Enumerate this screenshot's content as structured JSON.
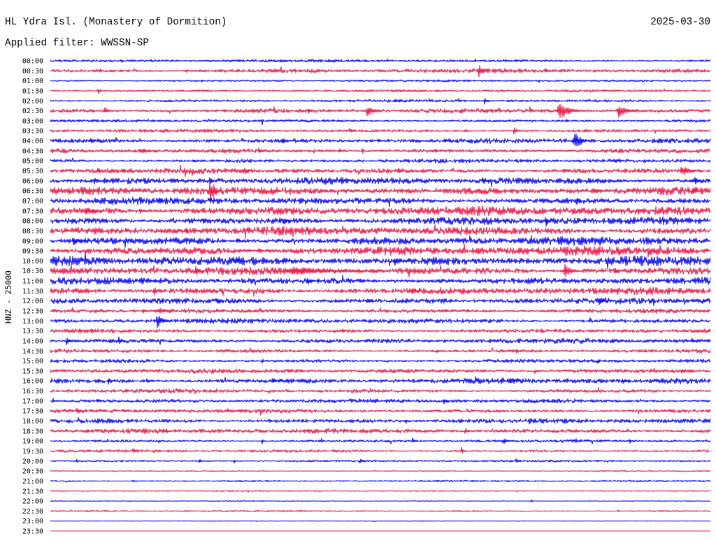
{
  "chart_data": {
    "type": "line",
    "title": "HL Ydra Isl. (Monastery of Dormition)",
    "date": "2025-03-30",
    "subtitle": "Applied filter: WWSSN-SP",
    "ylabel": "HNZ - 25000",
    "grid": false,
    "colors": [
      "#1010f4",
      "#f41c4c"
    ],
    "rows": [
      {
        "label": "00:00",
        "noise": 0.12,
        "events": [
          {
            "t": 3.27,
            "amp": 0.22,
            "dur": 6
          },
          {
            "t": 10.58,
            "amp": 0.25,
            "dur": 8
          },
          {
            "t": 14.87,
            "amp": 0.22,
            "dur": 8
          },
          {
            "t": 19.32,
            "amp": 0.2,
            "dur": 6
          }
        ]
      },
      {
        "label": "00:30",
        "noise": 0.17,
        "events": [
          {
            "t": 6.2,
            "amp": 0.22,
            "dur": 10
          },
          {
            "t": 19.48,
            "amp": 0.75,
            "dur": 25
          },
          {
            "t": 22.5,
            "amp": 0.35,
            "dur": 15
          }
        ]
      },
      {
        "label": "01:00",
        "noise": 0.09,
        "events": [
          {
            "t": 6.9,
            "amp": 0.18,
            "dur": 6
          },
          {
            "t": 14.1,
            "amp": 0.16,
            "dur": 6
          }
        ]
      },
      {
        "label": "01:30",
        "noise": 0.1,
        "events": [
          {
            "t": 2.16,
            "amp": 0.5,
            "dur": 15
          },
          {
            "t": 17.57,
            "amp": 0.3,
            "dur": 10
          }
        ]
      },
      {
        "label": "02:00",
        "noise": 0.12,
        "events": [
          {
            "t": 15.67,
            "amp": 0.25,
            "dur": 15
          },
          {
            "t": 19.73,
            "amp": 0.42,
            "dur": 20
          }
        ]
      },
      {
        "label": "02:30",
        "noise": 0.17,
        "events": [
          {
            "t": 2.48,
            "amp": 0.4,
            "dur": 20
          },
          {
            "t": 11.69,
            "amp": 0.35,
            "dur": 20
          },
          {
            "t": 14.39,
            "amp": 0.6,
            "dur": 45
          },
          {
            "t": 19.64,
            "amp": 0.25,
            "dur": 15
          },
          {
            "t": 23.13,
            "amp": 0.9,
            "dur": 70
          },
          {
            "t": 25.83,
            "amp": 0.75,
            "dur": 60
          }
        ]
      },
      {
        "label": "03:00",
        "noise": 0.12,
        "events": [
          {
            "t": 9.63,
            "amp": 0.45,
            "dur": 5
          },
          {
            "t": 13.1,
            "amp": 0.22,
            "dur": 10
          },
          {
            "t": 23.45,
            "amp": 0.35,
            "dur": 10
          }
        ]
      },
      {
        "label": "03:30",
        "noise": 0.14,
        "events": [
          {
            "t": 5.0,
            "amp": 0.22,
            "dur": 10
          },
          {
            "t": 13.6,
            "amp": 0.32,
            "dur": 20
          },
          {
            "t": 18.84,
            "amp": 0.3,
            "dur": 15
          },
          {
            "t": 21.07,
            "amp": 0.4,
            "dur": 20
          }
        ]
      },
      {
        "label": "04:00",
        "noise": 0.2,
        "events": [
          {
            "t": 1.84,
            "amp": 0.3,
            "dur": 30
          },
          {
            "t": 10.58,
            "amp": 0.5,
            "dur": 25
          },
          {
            "t": 14.87,
            "amp": 0.3,
            "dur": 15
          },
          {
            "t": 17.89,
            "amp": 0.3,
            "dur": 15
          },
          {
            "t": 23.83,
            "amp": 1.2,
            "dur": 45
          }
        ]
      },
      {
        "label": "04:30",
        "noise": 0.18,
        "events": [
          {
            "t": 4.07,
            "amp": 0.45,
            "dur": 45
          },
          {
            "t": 9.47,
            "amp": 0.3,
            "dur": 20
          },
          {
            "t": 13.12,
            "amp": 0.35,
            "dur": 20
          },
          {
            "t": 14.17,
            "amp": 0.55,
            "dur": 8
          }
        ]
      },
      {
        "label": "05:00",
        "noise": 0.16,
        "events": [
          {
            "t": 6.5,
            "amp": 0.2,
            "dur": 15
          },
          {
            "t": 25.6,
            "amp": 0.25,
            "dur": 20
          }
        ]
      },
      {
        "label": "05:30",
        "noise": 0.22,
        "events": [
          {
            "t": 2.16,
            "amp": 0.45,
            "dur": 15
          },
          {
            "t": 3.27,
            "amp": 0.35,
            "dur": 20
          },
          {
            "t": 8.83,
            "amp": 0.4,
            "dur": 35
          },
          {
            "t": 15.82,
            "amp": 0.35,
            "dur": 25
          },
          {
            "t": 28.69,
            "amp": 0.6,
            "dur": 60
          }
        ]
      },
      {
        "label": "06:00",
        "noise": 0.27,
        "events": [
          {
            "t": 2.0,
            "amp": 0.5,
            "dur": 12
          },
          {
            "t": 2.48,
            "amp": 0.4,
            "dur": 12
          },
          {
            "t": 7.25,
            "amp": 0.45,
            "dur": 20
          },
          {
            "t": 19.64,
            "amp": 0.35,
            "dur": 20
          },
          {
            "t": 29.3,
            "amp": 0.45,
            "dur": 25
          }
        ]
      },
      {
        "label": "06:30",
        "noise": 0.32,
        "events": [
          {
            "t": 7.25,
            "amp": 1.45,
            "dur": 35
          },
          {
            "t": 10.2,
            "amp": 0.3,
            "dur": 20
          },
          {
            "t": 12.5,
            "amp": 0.4,
            "dur": 4
          },
          {
            "t": 24.72,
            "amp": 0.45,
            "dur": 30
          },
          {
            "t": 29.2,
            "amp": 0.4,
            "dur": 20
          }
        ]
      },
      {
        "label": "07:00",
        "noise": 0.28,
        "events": [
          {
            "t": 4.96,
            "amp": 0.5,
            "dur": 15
          },
          {
            "t": 7.25,
            "amp": 0.4,
            "dur": 15
          },
          {
            "t": 23.93,
            "amp": 0.5,
            "dur": 20
          }
        ]
      },
      {
        "label": "07:30",
        "noise": 0.35,
        "events": [
          {
            "t": 1.68,
            "amp": 0.55,
            "dur": 40
          },
          {
            "t": 4.07,
            "amp": 0.4,
            "dur": 20
          }
        ]
      },
      {
        "label": "08:00",
        "noise": 0.3,
        "events": [
          {
            "t": 6.93,
            "amp": 0.5,
            "dur": 12
          },
          {
            "t": 10.58,
            "amp": 0.5,
            "dur": 30
          },
          {
            "t": 16.3,
            "amp": 0.4,
            "dur": 20
          },
          {
            "t": 22.5,
            "amp": 0.75,
            "dur": 20
          }
        ]
      },
      {
        "label": "08:30",
        "noise": 0.32,
        "events": [
          {
            "t": 3.43,
            "amp": 0.35,
            "dur": 20
          },
          {
            "t": 6.14,
            "amp": 0.4,
            "dur": 20
          }
        ]
      },
      {
        "label": "09:00",
        "noise": 0.33,
        "events": [
          {
            "t": 1.05,
            "amp": 0.55,
            "dur": 40
          },
          {
            "t": 8.5,
            "amp": 0.35,
            "dur": 20
          }
        ]
      },
      {
        "label": "09:30",
        "noise": 0.36,
        "events": [
          {
            "t": 9.47,
            "amp": 0.4,
            "dur": 20
          },
          {
            "t": 27.3,
            "amp": 0.45,
            "dur": 15
          }
        ]
      },
      {
        "label": "10:00",
        "noise": 0.38,
        "events": [
          {
            "t": 8.36,
            "amp": 0.55,
            "dur": 40
          },
          {
            "t": 10.58,
            "amp": 0.45,
            "dur": 25
          },
          {
            "t": 15.67,
            "amp": 0.5,
            "dur": 40
          }
        ]
      },
      {
        "label": "10:30",
        "noise": 0.3,
        "events": [
          {
            "t": 6.61,
            "amp": 0.5,
            "dur": 25
          },
          {
            "t": 11.06,
            "amp": 0.45,
            "dur": 260
          },
          {
            "t": 23.39,
            "amp": 0.7,
            "dur": 45
          },
          {
            "t": 25.67,
            "amp": 0.4,
            "dur": 20
          }
        ]
      },
      {
        "label": "11:00",
        "noise": 0.28,
        "events": [
          {
            "t": 4.54,
            "amp": 0.35,
            "dur": 20
          },
          {
            "t": 11.69,
            "amp": 0.45,
            "dur": 30
          }
        ]
      },
      {
        "label": "11:30",
        "noise": 0.28,
        "events": [
          {
            "t": 4.7,
            "amp": 0.55,
            "dur": 25
          },
          {
            "t": 16.46,
            "amp": 0.35,
            "dur": 30
          }
        ]
      },
      {
        "label": "12:00",
        "noise": 0.25,
        "events": [
          {
            "t": 7.56,
            "amp": 0.45,
            "dur": 20
          },
          {
            "t": 14.39,
            "amp": 0.4,
            "dur": 20
          },
          {
            "t": 24.94,
            "amp": 0.55,
            "dur": 20
          },
          {
            "t": 29.65,
            "amp": 0.45,
            "dur": 15
          }
        ]
      },
      {
        "label": "12:30",
        "noise": 0.18,
        "events": [
          {
            "t": 4.23,
            "amp": 0.35,
            "dur": 15
          },
          {
            "t": 4.96,
            "amp": 0.55,
            "dur": 20
          }
        ]
      },
      {
        "label": "13:00",
        "noise": 0.2,
        "events": [
          {
            "t": 4.86,
            "amp": 0.85,
            "dur": 35
          }
        ]
      },
      {
        "label": "13:30",
        "noise": 0.17,
        "events": [
          {
            "t": 13.28,
            "amp": 0.35,
            "dur": 20
          }
        ]
      },
      {
        "label": "14:00",
        "noise": 0.2,
        "events": [
          {
            "t": 0.73,
            "amp": 0.5,
            "dur": 20
          },
          {
            "t": 3.11,
            "amp": 0.45,
            "dur": 20
          },
          {
            "t": 13.12,
            "amp": 0.55,
            "dur": 6
          },
          {
            "t": 17.89,
            "amp": 0.35,
            "dur": 10
          },
          {
            "t": 29.17,
            "amp": 0.35,
            "dur": 20
          }
        ]
      },
      {
        "label": "14:30",
        "noise": 0.15,
        "events": [
          {
            "t": 17.57,
            "amp": 0.3,
            "dur": 15
          },
          {
            "t": 21.2,
            "amp": 0.3,
            "dur": 15
          }
        ]
      },
      {
        "label": "15:00",
        "noise": 0.15,
        "events": [
          {
            "t": 9.63,
            "amp": 0.3,
            "dur": 15
          },
          {
            "t": 24.88,
            "amp": 0.3,
            "dur": 15
          }
        ]
      },
      {
        "label": "15:30",
        "noise": 0.18,
        "events": [
          {
            "t": 22.02,
            "amp": 0.35,
            "dur": 20
          },
          {
            "t": 28.7,
            "amp": 0.3,
            "dur": 15
          }
        ]
      },
      {
        "label": "16:00",
        "noise": 0.22,
        "events": [
          {
            "t": 2.64,
            "amp": 0.4,
            "dur": 20
          },
          {
            "t": 4.39,
            "amp": 0.4,
            "dur": 20
          },
          {
            "t": 10.1,
            "amp": 0.45,
            "dur": 25
          },
          {
            "t": 20.91,
            "amp": 0.45,
            "dur": 25
          },
          {
            "t": 25.99,
            "amp": 0.45,
            "dur": 20
          }
        ]
      },
      {
        "label": "16:30",
        "noise": 0.16,
        "events": [
          {
            "t": 3.43,
            "amp": 0.3,
            "dur": 15
          },
          {
            "t": 10.1,
            "amp": 0.3,
            "dur": 15
          }
        ]
      },
      {
        "label": "17:00",
        "noise": 0.17,
        "events": [
          {
            "t": 0.1,
            "amp": 0.4,
            "dur": 15
          },
          {
            "t": 2.16,
            "amp": 0.3,
            "dur": 15
          },
          {
            "t": 17.89,
            "amp": 0.35,
            "dur": 15
          }
        ]
      },
      {
        "label": "17:30",
        "noise": 0.16,
        "events": [
          {
            "t": 1.21,
            "amp": 0.5,
            "dur": 20
          }
        ]
      },
      {
        "label": "18:00",
        "noise": 0.2,
        "events": [
          {
            "t": 16.14,
            "amp": 0.35,
            "dur": 20
          },
          {
            "t": 18.68,
            "amp": 0.3,
            "dur": 15
          }
        ]
      },
      {
        "label": "18:30",
        "noise": 0.2,
        "events": [
          {
            "t": 1.68,
            "amp": 0.35,
            "dur": 15
          },
          {
            "t": 5.18,
            "amp": 0.3,
            "dur": 15
          },
          {
            "t": 18.84,
            "amp": 0.55,
            "dur": 15
          }
        ]
      },
      {
        "label": "19:00",
        "noise": 0.12,
        "events": [
          {
            "t": 9.63,
            "amp": 0.3,
            "dur": 10
          },
          {
            "t": 12.33,
            "amp": 0.3,
            "dur": 10
          },
          {
            "t": 16.46,
            "amp": 0.35,
            "dur": 15
          },
          {
            "t": 20.59,
            "amp": 0.4,
            "dur": 25
          },
          {
            "t": 26.31,
            "amp": 0.35,
            "dur": 15
          }
        ]
      },
      {
        "label": "19:30",
        "noise": 0.12,
        "events": [
          {
            "t": 3.75,
            "amp": 0.4,
            "dur": 15
          },
          {
            "t": 18.68,
            "amp": 0.55,
            "dur": 15
          }
        ]
      },
      {
        "label": "20:00",
        "noise": 0.09,
        "events": [
          {
            "t": 1.21,
            "amp": 0.3,
            "dur": 10
          },
          {
            "t": 6.77,
            "amp": 0.3,
            "dur": 15
          },
          {
            "t": 8.36,
            "amp": 0.25,
            "dur": 10
          },
          {
            "t": 14.08,
            "amp": 0.4,
            "dur": 15
          },
          {
            "t": 21.16,
            "amp": 0.4,
            "dur": 15
          }
        ]
      },
      {
        "label": "20:30",
        "noise": 0.05,
        "events": []
      },
      {
        "label": "21:00",
        "noise": 0.08,
        "events": [
          {
            "t": 3.75,
            "amp": 0.2,
            "dur": 15
          }
        ]
      },
      {
        "label": "21:30",
        "noise": 0.05,
        "events": []
      },
      {
        "label": "22:00",
        "noise": 0.04,
        "events": [
          {
            "t": 21.86,
            "amp": 0.2,
            "dur": 8
          }
        ]
      },
      {
        "label": "22:30",
        "noise": 0.07,
        "events": [
          {
            "t": 2.48,
            "amp": 0.18,
            "dur": 4
          },
          {
            "t": 25.8,
            "amp": 0.2,
            "dur": 4
          }
        ]
      },
      {
        "label": "23:00",
        "noise": 0.03,
        "events": []
      },
      {
        "label": "23:30",
        "noise": 0,
        "events": []
      }
    ]
  }
}
